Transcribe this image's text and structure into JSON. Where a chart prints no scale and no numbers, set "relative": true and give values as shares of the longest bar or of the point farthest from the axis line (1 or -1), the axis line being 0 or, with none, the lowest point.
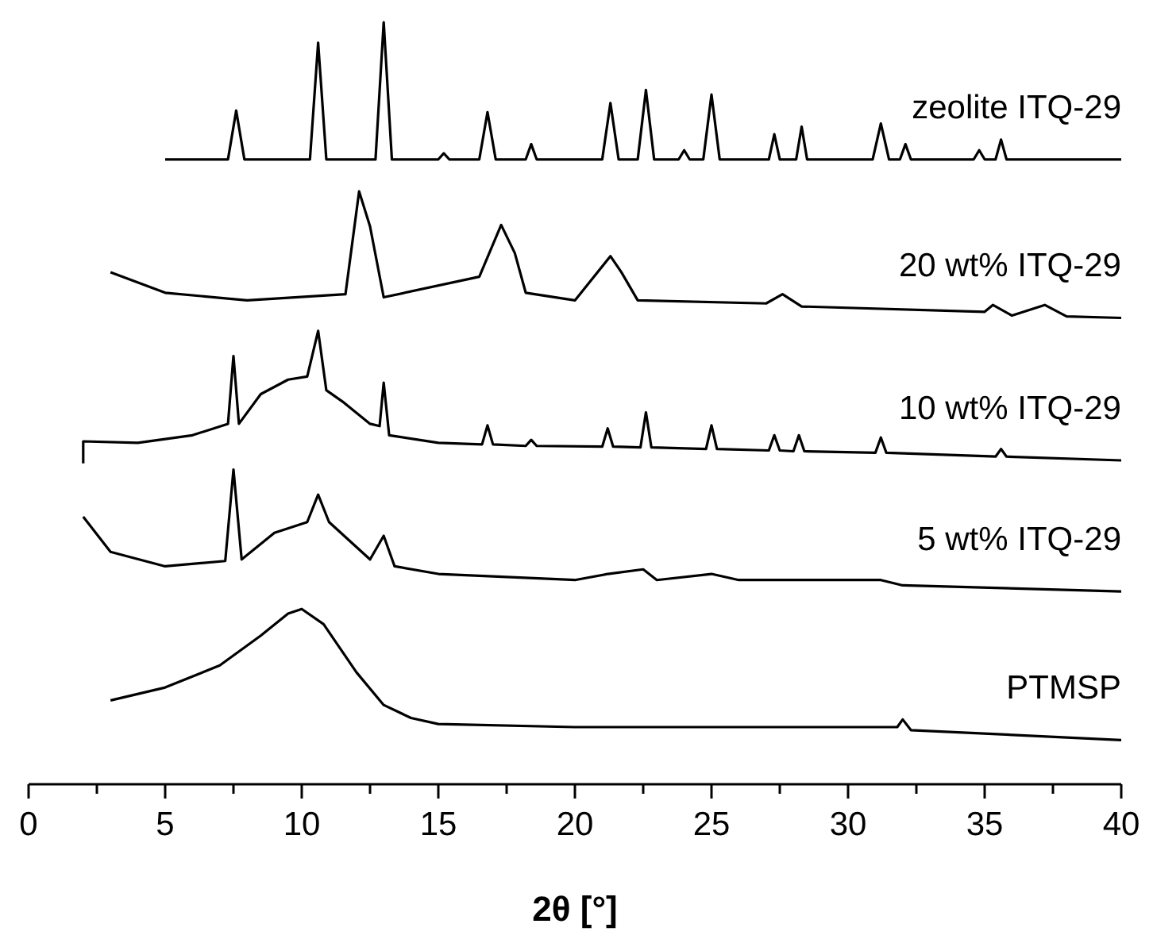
{
  "chart_data": {
    "type": "line",
    "relative": true,
    "xlabel": "2θ [°]",
    "xlim": [
      0,
      40
    ],
    "xticks": [
      0,
      {
        "value": 2.5,
        "label": null
      },
      5,
      {
        "value": 7.5,
        "label": null
      },
      10,
      {
        "value": 12.5,
        "label": null
      },
      15,
      {
        "value": 17.5,
        "label": null
      },
      20,
      {
        "value": 22.5,
        "label": null
      },
      25,
      {
        "value": 27.5,
        "label": null
      },
      30,
      {
        "value": 32.5,
        "label": null
      },
      35,
      {
        "value": 37.5,
        "label": null
      },
      40
    ],
    "tick_labels": "x",
    "marker": "none",
    "line_style": "solid",
    "grid": false,
    "series": [
      {
        "name": "zeolite ITQ-29",
        "color": "#000000",
        "x": [
          5,
          7.3,
          7.6,
          7.9,
          10.3,
          10.6,
          10.9,
          12.7,
          13.0,
          13.3,
          15.0,
          15.2,
          15.4,
          16.5,
          16.8,
          17.1,
          18.2,
          18.4,
          18.6,
          21.0,
          21.3,
          21.6,
          22.3,
          22.6,
          22.9,
          23.8,
          24.0,
          24.2,
          24.7,
          25.0,
          25.3,
          27.1,
          27.3,
          27.5,
          28.1,
          28.3,
          28.5,
          30.9,
          31.2,
          31.5,
          31.9,
          32.1,
          32.3,
          34.6,
          34.8,
          35.0,
          35.4,
          35.6,
          35.8,
          40
        ],
        "values": [
          0.82,
          0.82,
          0.884,
          0.82,
          0.82,
          0.973,
          0.82,
          0.82,
          1,
          0.82,
          0.82,
          0.828,
          0.82,
          0.82,
          0.882,
          0.82,
          0.82,
          0.84,
          0.82,
          0.82,
          0.894,
          0.82,
          0.82,
          0.911,
          0.82,
          0.82,
          0.832,
          0.82,
          0.82,
          0.905,
          0.82,
          0.82,
          0.853,
          0.82,
          0.82,
          0.863,
          0.82,
          0.82,
          0.867,
          0.82,
          0.82,
          0.84,
          0.82,
          0.82,
          0.832,
          0.82,
          0.82,
          0.846,
          0.82,
          0.82
        ]
      },
      {
        "name": "20 wt% ITQ-29",
        "color": "#000000",
        "x": [
          3,
          5,
          8,
          11.6,
          12.1,
          12.5,
          13.0,
          16.5,
          17.3,
          17.8,
          18.2,
          20,
          21.3,
          21.7,
          22.3,
          27.0,
          27.6,
          28.3,
          35.0,
          35.3,
          36,
          37.2,
          38,
          40
        ],
        "values": [
          0.672,
          0.645,
          0.635,
          0.643,
          0.778,
          0.732,
          0.639,
          0.666,
          0.734,
          0.697,
          0.645,
          0.635,
          0.693,
          0.672,
          0.635,
          0.631,
          0.643,
          0.627,
          0.62,
          0.629,
          0.615,
          0.629,
          0.614,
          0.612
        ]
      },
      {
        "name": "10 wt% ITQ-29",
        "color": "#000000",
        "x": [
          2,
          2,
          4,
          6,
          7.3,
          7.5,
          7.7,
          8.5,
          9.5,
          10.2,
          10.6,
          10.9,
          11.5,
          12.5,
          12.85,
          13.0,
          13.2,
          15,
          16.6,
          16.8,
          17.0,
          18.2,
          18.4,
          18.6,
          21.0,
          21.2,
          21.4,
          22.4,
          22.6,
          22.8,
          24.8,
          25,
          25.2,
          27.1,
          27.3,
          27.5,
          28.0,
          28.2,
          28.4,
          31.0,
          31.2,
          31.4,
          35.4,
          35.6,
          35.8,
          40
        ],
        "values": [
          0.421,
          0.45,
          0.448,
          0.458,
          0.473,
          0.562,
          0.473,
          0.512,
          0.531,
          0.535,
          0.595,
          0.517,
          0.502,
          0.473,
          0.47,
          0.527,
          0.458,
          0.448,
          0.446,
          0.471,
          0.446,
          0.444,
          0.452,
          0.444,
          0.443,
          0.467,
          0.443,
          0.442,
          0.488,
          0.442,
          0.44,
          0.471,
          0.44,
          0.438,
          0.458,
          0.438,
          0.437,
          0.458,
          0.437,
          0.435,
          0.455,
          0.435,
          0.43,
          0.44,
          0.43,
          0.425
        ]
      },
      {
        "name": "5 wt% ITQ-29",
        "color": "#000000",
        "x": [
          2,
          3,
          5,
          7.2,
          7.5,
          7.8,
          9,
          10.2,
          10.6,
          11,
          12.5,
          13,
          13.4,
          15,
          20,
          21.2,
          22.5,
          23,
          25,
          26,
          30,
          31.2,
          32,
          40
        ],
        "values": [
          0.351,
          0.305,
          0.286,
          0.293,
          0.413,
          0.295,
          0.33,
          0.344,
          0.38,
          0.344,
          0.295,
          0.326,
          0.286,
          0.276,
          0.268,
          0.276,
          0.282,
          0.268,
          0.276,
          0.268,
          0.268,
          0.268,
          0.261,
          0.253
        ]
      },
      {
        "name": "PTMSP",
        "color": "#000000",
        "x": [
          3,
          5,
          7,
          8.5,
          9.5,
          10,
          10.8,
          12,
          13,
          14,
          15,
          20,
          25,
          31.8,
          32,
          32.3,
          40
        ],
        "values": [
          0.11,
          0.127,
          0.156,
          0.195,
          0.224,
          0.23,
          0.21,
          0.147,
          0.104,
          0.087,
          0.079,
          0.075,
          0.075,
          0.075,
          0.085,
          0.071,
          0.058
        ]
      }
    ]
  }
}
